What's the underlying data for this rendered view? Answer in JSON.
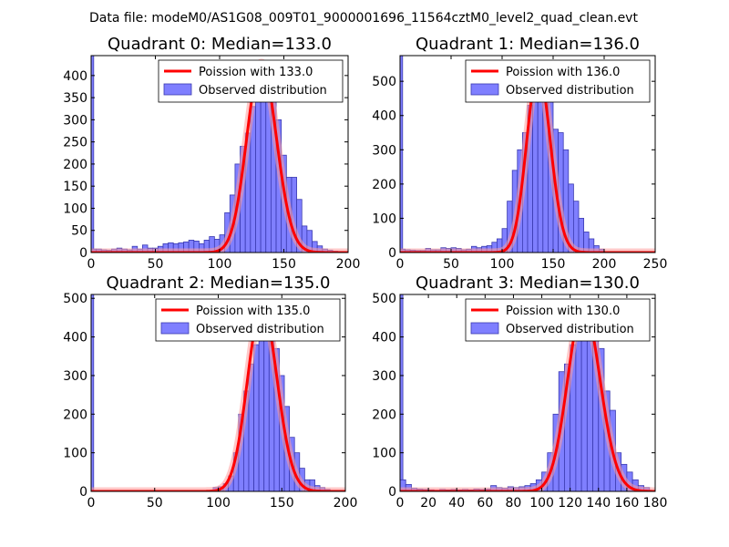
{
  "suptitle": "Data file: modeM0/AS1G08_009T01_9000001696_11564cztM0_level2_quad_clean.evt",
  "colors": {
    "bar_fill": "#7f7fff",
    "bar_edge": "#3a3ab0",
    "poisson_line": "#ff0000",
    "poisson_glow": "#ff9a9a",
    "axes": "#000000",
    "legend_edge": "#000000"
  },
  "chart_data": [
    {
      "type": "bar",
      "title": "Quadrant 0: Median=133.0",
      "median": 133,
      "xlim": [
        0,
        200
      ],
      "ylim": [
        0,
        445
      ],
      "xticks": [
        0,
        50,
        100,
        150,
        200
      ],
      "yticks": [
        0,
        50,
        100,
        150,
        200,
        250,
        300,
        350,
        400
      ],
      "bin_width": 4,
      "legend": {
        "line": "Poission with 133.0",
        "bars": "Observed distribution",
        "position": "top-right"
      },
      "edge_bar": {
        "x": 0,
        "value": 445
      },
      "bins": [
        [
          0,
          8
        ],
        [
          4,
          8
        ],
        [
          8,
          6
        ],
        [
          12,
          5
        ],
        [
          16,
          8
        ],
        [
          20,
          10
        ],
        [
          24,
          8
        ],
        [
          28,
          6
        ],
        [
          32,
          14
        ],
        [
          36,
          8
        ],
        [
          40,
          17
        ],
        [
          44,
          10
        ],
        [
          48,
          10
        ],
        [
          52,
          14
        ],
        [
          56,
          20
        ],
        [
          60,
          22
        ],
        [
          64,
          20
        ],
        [
          68,
          22
        ],
        [
          72,
          24
        ],
        [
          76,
          28
        ],
        [
          80,
          26
        ],
        [
          84,
          20
        ],
        [
          88,
          28
        ],
        [
          92,
          36
        ],
        [
          96,
          30
        ],
        [
          100,
          40
        ],
        [
          104,
          90
        ],
        [
          108,
          130
        ],
        [
          112,
          200
        ],
        [
          116,
          240
        ],
        [
          120,
          270
        ],
        [
          124,
          330
        ],
        [
          128,
          380
        ],
        [
          132,
          420
        ],
        [
          136,
          405
        ],
        [
          140,
          380
        ],
        [
          144,
          300
        ],
        [
          148,
          220
        ],
        [
          152,
          170
        ],
        [
          156,
          170
        ],
        [
          160,
          120
        ],
        [
          164,
          60
        ],
        [
          168,
          50
        ],
        [
          172,
          25
        ],
        [
          176,
          15
        ],
        [
          180,
          8
        ],
        [
          184,
          5
        ],
        [
          188,
          3
        ]
      ]
    },
    {
      "type": "bar",
      "title": "Quadrant 1: Median=136.0",
      "median": 136,
      "xlim": [
        0,
        250
      ],
      "ylim": [
        0,
        575
      ],
      "xticks": [
        0,
        50,
        100,
        150,
        200,
        250
      ],
      "yticks": [
        0,
        100,
        200,
        300,
        400,
        500
      ],
      "bin_width": 5,
      "legend": {
        "line": "Poission with 136.0",
        "bars": "Observed distribution",
        "position": "top-right"
      },
      "edge_bar": {
        "x": 0,
        "value": 575
      },
      "bins": [
        [
          0,
          10
        ],
        [
          5,
          8
        ],
        [
          10,
          7
        ],
        [
          15,
          6
        ],
        [
          20,
          6
        ],
        [
          25,
          12
        ],
        [
          30,
          8
        ],
        [
          35,
          8
        ],
        [
          40,
          14
        ],
        [
          45,
          12
        ],
        [
          50,
          14
        ],
        [
          55,
          12
        ],
        [
          60,
          8
        ],
        [
          65,
          10
        ],
        [
          70,
          18
        ],
        [
          75,
          14
        ],
        [
          80,
          18
        ],
        [
          85,
          20
        ],
        [
          90,
          30
        ],
        [
          95,
          40
        ],
        [
          100,
          70
        ],
        [
          105,
          150
        ],
        [
          110,
          240
        ],
        [
          115,
          300
        ],
        [
          120,
          350
        ],
        [
          125,
          430
        ],
        [
          130,
          500
        ],
        [
          135,
          520
        ],
        [
          140,
          490
        ],
        [
          145,
          440
        ],
        [
          150,
          360
        ],
        [
          155,
          350
        ],
        [
          160,
          300
        ],
        [
          165,
          200
        ],
        [
          170,
          150
        ],
        [
          175,
          100
        ],
        [
          180,
          60
        ],
        [
          185,
          40
        ],
        [
          190,
          20
        ],
        [
          195,
          10
        ]
      ]
    },
    {
      "type": "bar",
      "title": "Quadrant 2: Median=135.0",
      "median": 135,
      "xlim": [
        0,
        200
      ],
      "ylim": [
        0,
        510
      ],
      "xticks": [
        0,
        50,
        100,
        150,
        200
      ],
      "yticks": [
        0,
        100,
        200,
        300,
        400,
        500
      ],
      "bin_width": 4,
      "legend": {
        "line": "Poission with 135.0",
        "bars": "Observed distribution",
        "position": "top-right"
      },
      "edge_bar": {
        "x": 0,
        "value": 510
      },
      "bins": [
        [
          96,
          10
        ],
        [
          100,
          12
        ],
        [
          104,
          20
        ],
        [
          108,
          40
        ],
        [
          112,
          100
        ],
        [
          116,
          200
        ],
        [
          120,
          260
        ],
        [
          124,
          330
        ],
        [
          128,
          380
        ],
        [
          132,
          420
        ],
        [
          136,
          470
        ],
        [
          140,
          440
        ],
        [
          144,
          370
        ],
        [
          148,
          300
        ],
        [
          152,
          220
        ],
        [
          156,
          140
        ],
        [
          160,
          100
        ],
        [
          164,
          60
        ],
        [
          168,
          30
        ],
        [
          172,
          30
        ],
        [
          176,
          15
        ],
        [
          180,
          10
        ],
        [
          184,
          5
        ]
      ]
    },
    {
      "type": "bar",
      "title": "Quadrant 3: Median=130.0",
      "median": 130,
      "xlim": [
        0,
        180
      ],
      "ylim": [
        0,
        510
      ],
      "xticks": [
        0,
        20,
        40,
        60,
        80,
        100,
        120,
        140,
        160,
        180
      ],
      "yticks": [
        0,
        100,
        200,
        300,
        400,
        500
      ],
      "bin_width": 4,
      "legend": {
        "line": "Poission with 130.0",
        "bars": "Observed distribution",
        "position": "top-right"
      },
      "edge_bar": {
        "x": 0,
        "value": 510
      },
      "bins": [
        [
          0,
          30
        ],
        [
          4,
          18
        ],
        [
          8,
          8
        ],
        [
          12,
          6
        ],
        [
          16,
          5
        ],
        [
          20,
          4
        ],
        [
          24,
          3
        ],
        [
          28,
          5
        ],
        [
          32,
          4
        ],
        [
          36,
          5
        ],
        [
          40,
          4
        ],
        [
          44,
          5
        ],
        [
          48,
          4
        ],
        [
          52,
          6
        ],
        [
          56,
          5
        ],
        [
          60,
          6
        ],
        [
          64,
          15
        ],
        [
          68,
          10
        ],
        [
          72,
          8
        ],
        [
          76,
          12
        ],
        [
          80,
          10
        ],
        [
          84,
          12
        ],
        [
          88,
          15
        ],
        [
          92,
          20
        ],
        [
          96,
          30
        ],
        [
          100,
          50
        ],
        [
          104,
          100
        ],
        [
          108,
          200
        ],
        [
          112,
          310
        ],
        [
          116,
          330
        ],
        [
          120,
          380
        ],
        [
          124,
          430
        ],
        [
          128,
          450
        ],
        [
          132,
          470
        ],
        [
          136,
          400
        ],
        [
          140,
          370
        ],
        [
          144,
          260
        ],
        [
          148,
          210
        ],
        [
          152,
          100
        ],
        [
          156,
          70
        ],
        [
          160,
          50
        ],
        [
          164,
          30
        ],
        [
          168,
          15
        ],
        [
          172,
          10
        ]
      ]
    }
  ]
}
